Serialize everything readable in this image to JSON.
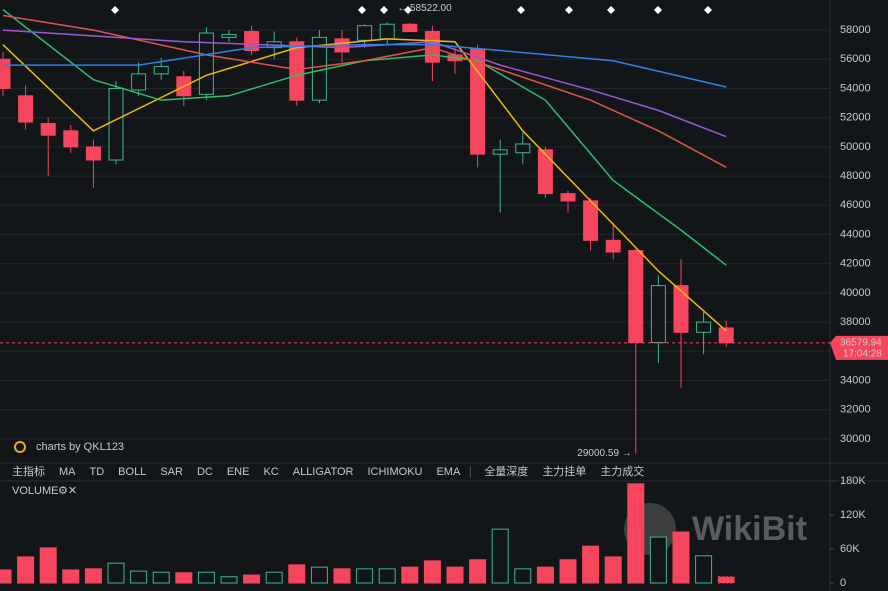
{
  "chart_data": [
    {
      "type": "candlestick",
      "open": [
        56000,
        53500,
        51600,
        51100,
        50000,
        49100,
        53900,
        55000,
        54800,
        53600,
        57500,
        57900,
        56800,
        57200,
        53200,
        57400,
        57300,
        57400,
        58400,
        57900,
        56300,
        56700,
        49500,
        49600,
        49800,
        46800,
        46300,
        43600,
        42900,
        36600,
        40500,
        37300,
        37600
      ],
      "high": [
        56500,
        54200,
        52000,
        51500,
        50500,
        54500,
        55800,
        56100,
        55200,
        58200,
        58000,
        58300,
        57900,
        57500,
        58000,
        58000,
        58400,
        58522,
        58500,
        58300,
        56800,
        57000,
        50500,
        51000,
        50000,
        47000,
        46500,
        44800,
        43000,
        41200,
        42300,
        38700,
        38100
      ],
      "low": [
        53500,
        51200,
        48000,
        49600,
        47200,
        48800,
        53500,
        54600,
        52800,
        53200,
        57200,
        56300,
        56000,
        52800,
        53000,
        55800,
        56800,
        57000,
        57900,
        54500,
        55000,
        48600,
        45500,
        48800,
        46500,
        45500,
        42900,
        42300,
        29000.59,
        35200,
        33500,
        35800,
        36300
      ],
      "close": [
        54000,
        51700,
        50800,
        50000,
        49100,
        54000,
        55000,
        55500,
        53500,
        57800,
        57700,
        56600,
        57200,
        53200,
        57500,
        56500,
        58300,
        58400,
        57900,
        55800,
        55900,
        49500,
        49800,
        50200,
        46800,
        46300,
        43600,
        42800,
        36600,
        40500,
        37300,
        38000,
        36579.94
      ],
      "up_color": "#3fb68b",
      "down_color": "#f6465d",
      "ylim": [
        28350,
        60060
      ],
      "yticks": [
        30000,
        32000,
        34000,
        36000,
        38000,
        40000,
        42000,
        44000,
        46000,
        48000,
        50000,
        52000,
        54000,
        56000,
        58000
      ],
      "grid": true,
      "overlays": [
        {
          "color": "#f0b90b",
          "x": [
            0,
            4,
            9,
            13,
            17,
            20,
            23,
            26,
            29,
            32
          ],
          "values": [
            57000,
            51100,
            54900,
            56800,
            57400,
            57200,
            51100,
            46300,
            41500,
            37400
          ]
        },
        {
          "color": "#2ebd6b",
          "x": [
            0,
            4,
            7,
            10,
            13,
            16,
            19,
            21,
            24,
            27,
            30,
            32
          ],
          "values": [
            59400,
            54600,
            53200,
            53500,
            54900,
            55900,
            56300,
            55900,
            53200,
            47700,
            44300,
            41900
          ]
        },
        {
          "color": "#e0534a",
          "x": [
            0,
            4,
            9,
            13,
            16,
            19,
            22,
            26,
            29,
            32
          ],
          "values": [
            59000,
            58000,
            56300,
            55300,
            55900,
            56800,
            55300,
            53200,
            51100,
            48600
          ]
        },
        {
          "color": "#9b59d0",
          "x": [
            0,
            8,
            15,
            19,
            22,
            26,
            29,
            32
          ],
          "values": [
            58000,
            57200,
            56800,
            57200,
            55600,
            53900,
            52500,
            50700
          ]
        },
        {
          "color": "#2f80ed",
          "x": [
            0,
            6,
            11,
            16,
            19,
            22,
            27,
            32
          ],
          "values": [
            55600,
            55600,
            56800,
            57000,
            57000,
            56600,
            55900,
            54100
          ]
        }
      ],
      "high_label": {
        "value": 58522,
        "label": "← 58522.00"
      },
      "low_label": {
        "value": 29000.59,
        "label": "29000.59 →"
      },
      "last_price": 36579.94,
      "last_time": "17:04:28",
      "watermark": "charts by QKL123",
      "toolbar": {
        "items": [
          "主指标",
          "MA",
          "TD",
          "BOLL",
          "SAR",
          "DC",
          "ENE",
          "KC",
          "ALLIGATOR",
          "ICHIMOKU",
          "EMA"
        ],
        "active": 1,
        "depth_tabs": [
          "全量深度",
          "主力挂单",
          "主力成交"
        ]
      }
    },
    {
      "type": "volume",
      "title": "VOLUME",
      "values": [
        23000,
        46000,
        62000,
        23000,
        25000,
        35000,
        21000,
        19000,
        18000,
        19000,
        11000,
        14000,
        19000,
        32000,
        28000,
        25000,
        25000,
        25000,
        28000,
        39000,
        28000,
        41000,
        95000,
        25000,
        28000,
        41000,
        65000,
        46000,
        175000,
        81000,
        90000,
        48000,
        11000
      ],
      "ylim": [
        0,
        180000
      ],
      "yticks": [
        0,
        {
          "value": 60000,
          "label": "60K"
        },
        {
          "value": 120000,
          "label": "120K"
        },
        {
          "value": 180000,
          "label": "180K"
        }
      ]
    }
  ],
  "brand": "WikiBit"
}
